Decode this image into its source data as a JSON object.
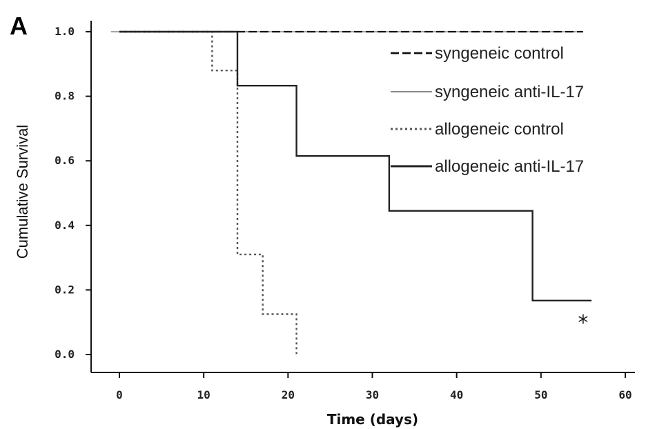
{
  "chart_data": {
    "type": "line",
    "panel_label": "A",
    "title": "",
    "xlabel": "Time (days)",
    "ylabel": "Cumulative Survival",
    "xlim": [
      -1,
      60
    ],
    "ylim": [
      0,
      1.0
    ],
    "xticks": [
      0,
      10,
      20,
      30,
      40,
      50,
      60
    ],
    "yticks": [
      "0.0",
      "0.2",
      "0.4",
      "0.6",
      "0.8",
      "1.0"
    ],
    "legend_position": "top-right",
    "series": [
      {
        "name": "syngeneic control",
        "style": "long-dash",
        "color": "#111111",
        "x": [
          0,
          55
        ],
        "y": [
          1.0,
          1.0
        ]
      },
      {
        "name": "syngeneic anti-IL-17",
        "style": "thin",
        "color": "#888888",
        "x": [
          -1,
          55
        ],
        "y": [
          1.0,
          1.0
        ]
      },
      {
        "name": "allogeneic control",
        "style": "dotted",
        "color": "#555555",
        "x": [
          0,
          11,
          11,
          14,
          14,
          17,
          17,
          21,
          21
        ],
        "y": [
          1.0,
          1.0,
          0.88,
          0.88,
          0.31,
          0.31,
          0.125,
          0.125,
          0.0
        ]
      },
      {
        "name": "allogeneic anti-IL-17",
        "style": "solid",
        "color": "#222222",
        "x": [
          0,
          14,
          14,
          21,
          21,
          32,
          32,
          49,
          49,
          56
        ],
        "y": [
          1.0,
          1.0,
          0.833,
          0.833,
          0.615,
          0.615,
          0.445,
          0.445,
          0.167,
          0.167
        ]
      }
    ],
    "annotations": [
      {
        "text": "*",
        "x": 55,
        "y": 0.12
      }
    ]
  }
}
